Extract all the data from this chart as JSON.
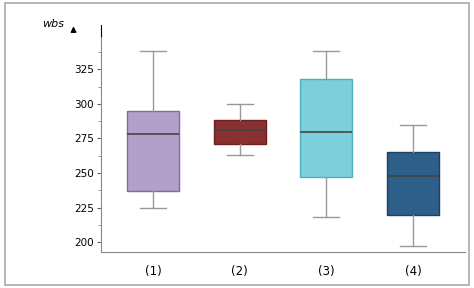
{
  "boxes": [
    {
      "label": "(1)",
      "whislo": 225,
      "q1": 237,
      "med": 278,
      "q3": 295,
      "whishi": 338,
      "color": "#b3a0c8",
      "edge_color": "#7a6aaa"
    },
    {
      "label": "(2)",
      "whislo": 263,
      "q1": 271,
      "med": 281,
      "q3": 288,
      "whishi": 300,
      "color": "#8b3030",
      "edge_color": "#6a2020"
    },
    {
      "label": "(3)",
      "whislo": 218,
      "q1": 247,
      "med": 280,
      "q3": 318,
      "whishi": 338,
      "color": "#7ecfdc",
      "edge_color": "#50b0c0"
    },
    {
      "label": "(4)",
      "whislo": 197,
      "q1": 220,
      "med": 248,
      "q3": 265,
      "whishi": 285,
      "color": "#2e5f8a",
      "edge_color": "#1e4060"
    }
  ],
  "ylabel": "wbs",
  "ylim": [
    193,
    348
  ],
  "yticks": [
    200,
    225,
    250,
    275,
    300,
    325
  ],
  "background_color": "#ffffff",
  "whisker_color": "#999999",
  "cap_color": "#999999",
  "median_color": "#444444",
  "box_width": 0.6,
  "border_color": "#aaaaaa",
  "figure_bg": "#ffffff"
}
